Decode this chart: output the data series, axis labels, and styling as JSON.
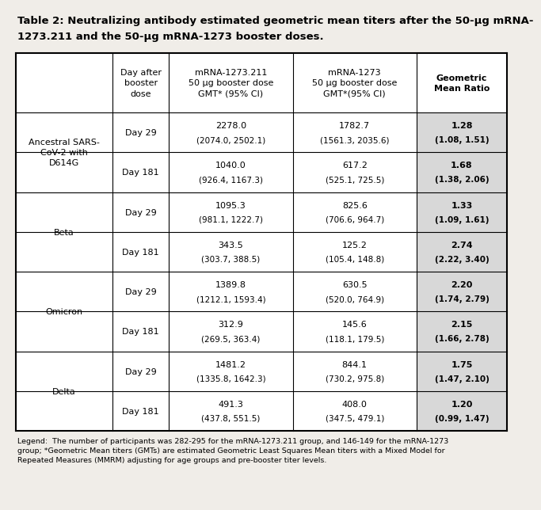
{
  "title_line1": "Table 2: Neutralizing antibody estimated geometric mean titers after the 50-μg mRNA-",
  "title_line2": "1273.211 and the 50-μg mRNA-1273 booster doses.",
  "col0_header": "",
  "col1_header": "Day after\nbooster\ndose",
  "col2_header": "mRNA-1273.211\n50 μg booster dose\nGMT* (95% CI)",
  "col3_header": "mRNA-1273\n50 μg booster dose\nGMT*(95% CI)",
  "col4_header": "Geometric\nMean Ratio",
  "group_spans": [
    {
      "name": "Ancestral SARS-\nCoV-2 with\nD614G",
      "start": 0,
      "end": 1
    },
    {
      "name": "Beta",
      "start": 2,
      "end": 3
    },
    {
      "name": "Omicron",
      "start": 4,
      "end": 5
    },
    {
      "name": "Delta",
      "start": 6,
      "end": 7
    }
  ],
  "rows": [
    {
      "day": "Day 29",
      "mrna211_main": "2278.0",
      "mrna211_ci": "(2074.0, 2502.1)",
      "mrna1273_main": "1782.7",
      "mrna1273_ci": "(1561.3, 2035.6)",
      "gmr_main": "1.28",
      "gmr_ci": "(1.08, 1.51)"
    },
    {
      "day": "Day 181",
      "mrna211_main": "1040.0",
      "mrna211_ci": "(926.4, 1167.3)",
      "mrna1273_main": "617.2",
      "mrna1273_ci": "(525.1, 725.5)",
      "gmr_main": "1.68",
      "gmr_ci": "(1.38, 2.06)"
    },
    {
      "day": "Day 29",
      "mrna211_main": "1095.3",
      "mrna211_ci": "(981.1, 1222.7)",
      "mrna1273_main": "825.6",
      "mrna1273_ci": "(706.6, 964.7)",
      "gmr_main": "1.33",
      "gmr_ci": "(1.09, 1.61)"
    },
    {
      "day": "Day 181",
      "mrna211_main": "343.5",
      "mrna211_ci": "(303.7, 388.5)",
      "mrna1273_main": "125.2",
      "mrna1273_ci": "(105.4, 148.8)",
      "gmr_main": "2.74",
      "gmr_ci": "(2.22, 3.40)"
    },
    {
      "day": "Day 29",
      "mrna211_main": "1389.8",
      "mrna211_ci": "(1212.1, 1593.4)",
      "mrna1273_main": "630.5",
      "mrna1273_ci": "(520.0, 764.9)",
      "gmr_main": "2.20",
      "gmr_ci": "(1.74, 2.79)"
    },
    {
      "day": "Day 181",
      "mrna211_main": "312.9",
      "mrna211_ci": "(269.5, 363.4)",
      "mrna1273_main": "145.6",
      "mrna1273_ci": "(118.1, 179.5)",
      "gmr_main": "2.15",
      "gmr_ci": "(1.66, 2.78)"
    },
    {
      "day": "Day 29",
      "mrna211_main": "1481.2",
      "mrna211_ci": "(1335.8, 1642.3)",
      "mrna1273_main": "844.1",
      "mrna1273_ci": "(730.2, 975.8)",
      "gmr_main": "1.75",
      "gmr_ci": "(1.47, 2.10)"
    },
    {
      "day": "Day 181",
      "mrna211_main": "491.3",
      "mrna211_ci": "(437.8, 551.5)",
      "mrna1273_main": "408.0",
      "mrna1273_ci": "(347.5, 479.1)",
      "gmr_main": "1.20",
      "gmr_ci": "(0.99, 1.47)"
    }
  ],
  "legend_line1": "Legend:  The number of participants was 282-295 for the mRNA-1273.211 group, and 146-149 for the mRNA-1273",
  "legend_line2": "group; *Geometric Mean titers (GMTs) are estimated Geometric Least Squares Mean titers with a Mixed Model for",
  "legend_line3": "Repeated Measures (MMRM) adjusting for age groups and pre-booster titer levels.",
  "bg_color": "#f0ede8",
  "table_bg": "#ffffff",
  "gmr_bg": "#d8d8d8",
  "border_color": "#000000",
  "text_color": "#000000"
}
